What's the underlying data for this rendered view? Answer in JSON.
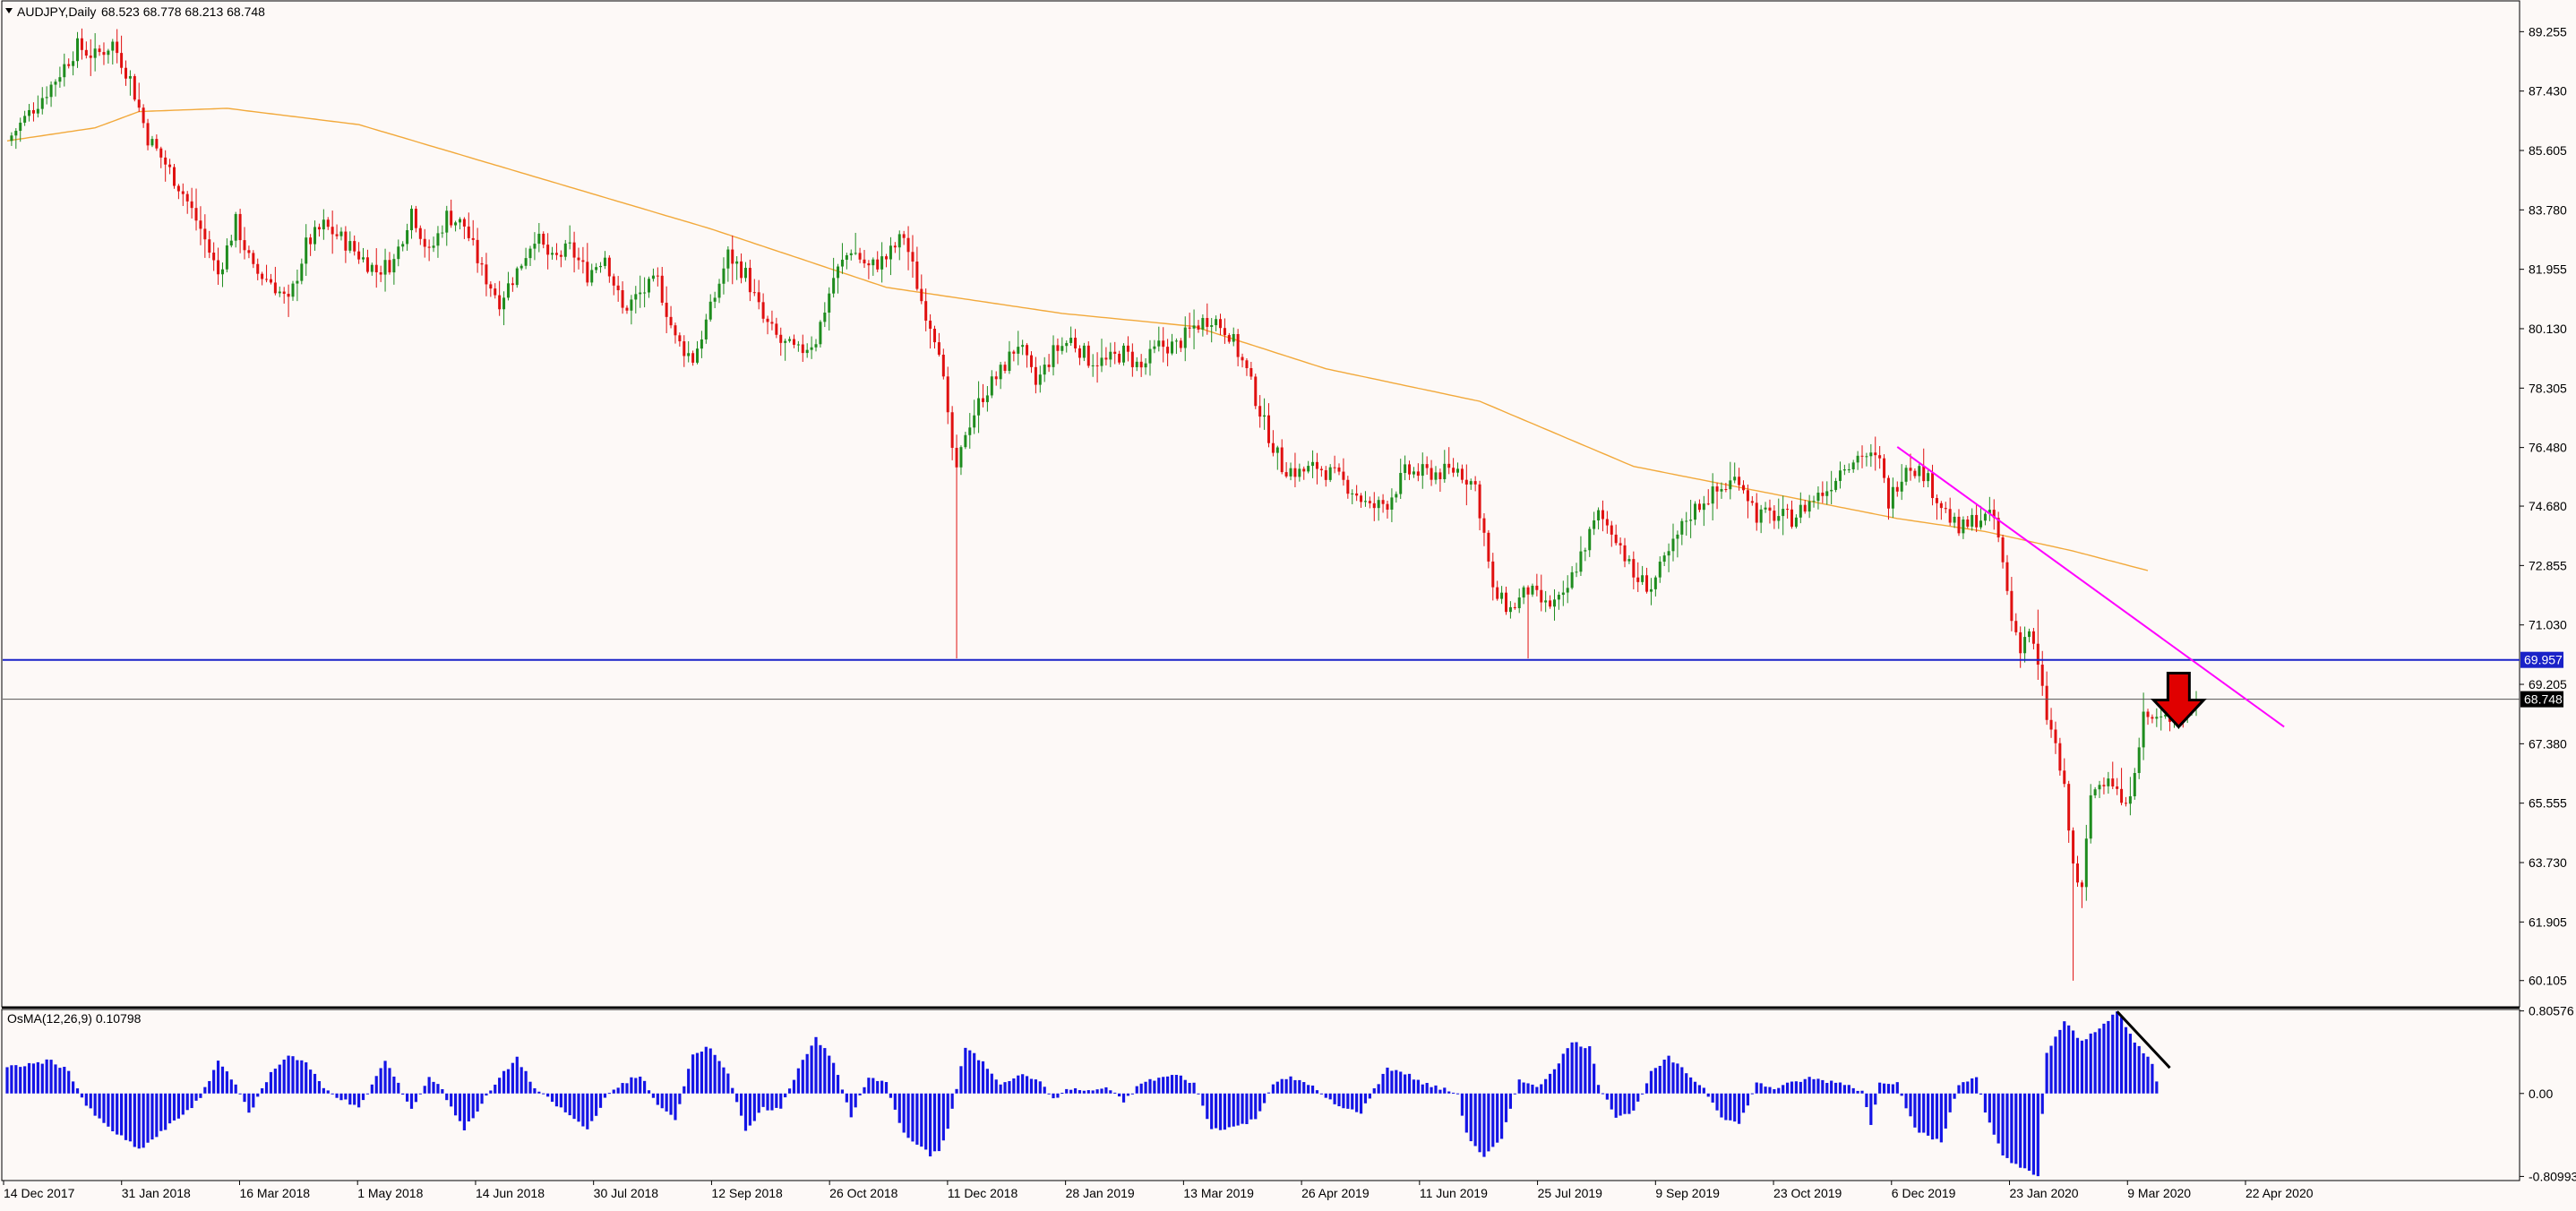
{
  "header": {
    "symbol_label": "AUDJPY,Daily",
    "ohlc_label": "68.523 68.778 68.213 68.748"
  },
  "colors": {
    "background": "#fdf9f7",
    "bull": "#1e8c1e",
    "bear": "#e01010",
    "ma": "#f2a93b",
    "support": "#1a22c8",
    "trendline": "#ff00ff",
    "osma": "#1414e6",
    "price_line": "#000000",
    "arrow": "#e00000"
  },
  "chart_data": [
    {
      "type": "candlestick",
      "title": "AUDJPY,Daily",
      "y_ticks": [
        "89.255",
        "87.430",
        "85.605",
        "83.780",
        "81.955",
        "80.130",
        "78.305",
        "76.480",
        "74.680",
        "72.855",
        "71.030",
        "69.205",
        "67.380",
        "65.555",
        "63.730",
        "61.905",
        "60.105"
      ],
      "ylim": [
        59.3,
        90.2
      ],
      "x_ticks": [
        "14 Dec 2017",
        "31 Jan 2018",
        "16 Mar 2018",
        "1 May 2018",
        "14 Jun 2018",
        "30 Jul 2018",
        "12 Sep 2018",
        "26 Oct 2018",
        "11 Dec 2018",
        "28 Jan 2019",
        "13 Mar 2019",
        "26 Apr 2019",
        "11 Jun 2019",
        "25 Jul 2019",
        "9 Sep 2019",
        "23 Oct 2019",
        "6 Dec 2019",
        "23 Jan 2020",
        "9 Mar 2020",
        "22 Apr 2020"
      ],
      "price_path": [
        [
          0,
          85.9
        ],
        [
          10,
          87.6
        ],
        [
          16,
          88.8
        ],
        [
          20,
          88.5
        ],
        [
          24,
          88.9
        ],
        [
          28,
          87.8
        ],
        [
          32,
          86.0
        ],
        [
          36,
          85.2
        ],
        [
          40,
          84.3
        ],
        [
          44,
          83.2
        ],
        [
          48,
          81.8
        ],
        [
          52,
          83.4
        ],
        [
          56,
          81.9
        ],
        [
          60,
          81.6
        ],
        [
          64,
          80.9
        ],
        [
          68,
          82.7
        ],
        [
          72,
          83.3
        ],
        [
          76,
          82.9
        ],
        [
          80,
          82.4
        ],
        [
          84,
          81.9
        ],
        [
          88,
          82.2
        ],
        [
          92,
          83.8
        ],
        [
          96,
          82.4
        ],
        [
          100,
          83.6
        ],
        [
          104,
          83.3
        ],
        [
          108,
          81.9
        ],
        [
          112,
          81.0
        ],
        [
          116,
          81.9
        ],
        [
          120,
          83.0
        ],
        [
          124,
          82.2
        ],
        [
          128,
          82.6
        ],
        [
          132,
          81.8
        ],
        [
          136,
          82.4
        ],
        [
          140,
          80.7
        ],
        [
          144,
          81.2
        ],
        [
          148,
          81.6
        ],
        [
          152,
          79.8
        ],
        [
          156,
          79.2
        ],
        [
          160,
          80.7
        ],
        [
          164,
          82.4
        ],
        [
          168,
          81.8
        ],
        [
          172,
          80.4
        ],
        [
          176,
          79.7
        ],
        [
          180,
          79.4
        ],
        [
          184,
          79.8
        ],
        [
          188,
          81.7
        ],
        [
          192,
          82.6
        ],
        [
          196,
          82.0
        ],
        [
          200,
          82.3
        ],
        [
          204,
          83.0
        ],
        [
          208,
          81.0
        ],
        [
          212,
          79.6
        ],
        [
          214,
          77.3
        ],
        [
          216,
          75.6
        ],
        [
          218,
          77.0
        ],
        [
          222,
          78.1
        ],
        [
          226,
          78.8
        ],
        [
          230,
          79.7
        ],
        [
          234,
          78.4
        ],
        [
          238,
          79.4
        ],
        [
          242,
          79.8
        ],
        [
          246,
          79.2
        ],
        [
          250,
          79.1
        ],
        [
          254,
          79.4
        ],
        [
          258,
          78.9
        ],
        [
          262,
          79.6
        ],
        [
          266,
          79.6
        ],
        [
          270,
          80.2
        ],
        [
          274,
          80.5
        ],
        [
          278,
          80.0
        ],
        [
          282,
          78.8
        ],
        [
          286,
          77.2
        ],
        [
          290,
          75.9
        ],
        [
          294,
          75.7
        ],
        [
          298,
          75.9
        ],
        [
          302,
          75.6
        ],
        [
          306,
          75.2
        ],
        [
          310,
          74.6
        ],
        [
          314,
          74.8
        ],
        [
          318,
          75.7
        ],
        [
          322,
          75.7
        ],
        [
          326,
          75.7
        ],
        [
          330,
          75.8
        ],
        [
          334,
          75.3
        ],
        [
          336,
          73.8
        ],
        [
          338,
          72.0
        ],
        [
          342,
          71.5
        ],
        [
          346,
          72.1
        ],
        [
          350,
          71.6
        ],
        [
          354,
          71.8
        ],
        [
          358,
          73.2
        ],
        [
          362,
          74.4
        ],
        [
          366,
          73.8
        ],
        [
          370,
          72.5
        ],
        [
          374,
          72.2
        ],
        [
          378,
          73.2
        ],
        [
          382,
          74.3
        ],
        [
          386,
          74.9
        ],
        [
          390,
          75.2
        ],
        [
          394,
          75.6
        ],
        [
          398,
          74.4
        ],
        [
          402,
          74.4
        ],
        [
          406,
          74.3
        ],
        [
          410,
          74.8
        ],
        [
          414,
          75.2
        ],
        [
          418,
          76.0
        ],
        [
          422,
          76.3
        ],
        [
          426,
          76.0
        ],
        [
          428,
          74.8
        ],
        [
          432,
          76.0
        ],
        [
          436,
          75.7
        ],
        [
          440,
          74.7
        ],
        [
          444,
          73.9
        ],
        [
          448,
          74.3
        ],
        [
          452,
          74.3
        ],
        [
          454,
          72.9
        ],
        [
          456,
          71.2
        ],
        [
          458,
          70.4
        ],
        [
          460,
          70.9
        ],
        [
          462,
          69.7
        ],
        [
          464,
          68.2
        ],
        [
          466,
          67.3
        ],
        [
          468,
          65.9
        ],
        [
          470,
          63.6
        ],
        [
          472,
          62.8
        ],
        [
          474,
          65.8
        ],
        [
          478,
          66.5
        ],
        [
          482,
          65.3
        ],
        [
          486,
          68.2
        ],
        [
          490,
          68.1
        ],
        [
          494,
          68.3
        ],
        [
          498,
          68.748
        ]
      ],
      "ma_path": [
        [
          0,
          85.9
        ],
        [
          20,
          86.3
        ],
        [
          30,
          86.8
        ],
        [
          50,
          86.9
        ],
        [
          80,
          86.4
        ],
        [
          120,
          84.8
        ],
        [
          160,
          83.2
        ],
        [
          200,
          81.4
        ],
        [
          240,
          80.6
        ],
        [
          270,
          80.2
        ],
        [
          300,
          78.9
        ],
        [
          335,
          77.9
        ],
        [
          370,
          75.9
        ],
        [
          400,
          75.1
        ],
        [
          430,
          74.3
        ],
        [
          450,
          73.9
        ],
        [
          470,
          73.3
        ],
        [
          487,
          72.7
        ]
      ],
      "support_level": 69.957,
      "support_label": "69.957",
      "last_price": 68.748,
      "last_price_label": "68.748",
      "trendline": [
        [
          430,
          76.5
        ],
        [
          518,
          67.9
        ]
      ],
      "annotation_arrow": {
        "x": 494,
        "y": 67.9,
        "direction": "down"
      }
    },
    {
      "type": "bar",
      "title": "OsMA(12,26,9) 0.10798",
      "y_ticks": [
        "0.80576",
        "0.00",
        "-0.80993"
      ],
      "ylim": [
        -0.85,
        0.82
      ],
      "zero": 0.0,
      "osma_path": [
        [
          0,
          0.25
        ],
        [
          10,
          0.32
        ],
        [
          14,
          0.22
        ],
        [
          18,
          -0.12
        ],
        [
          22,
          -0.3
        ],
        [
          30,
          -0.55
        ],
        [
          34,
          -0.42
        ],
        [
          40,
          -0.2
        ],
        [
          44,
          -0.05
        ],
        [
          48,
          0.32
        ],
        [
          52,
          0.1
        ],
        [
          55,
          -0.2
        ],
        [
          60,
          0.2
        ],
        [
          64,
          0.38
        ],
        [
          68,
          0.3
        ],
        [
          72,
          0.05
        ],
        [
          80,
          -0.15
        ],
        [
          86,
          0.32
        ],
        [
          92,
          -0.15
        ],
        [
          96,
          0.15
        ],
        [
          98,
          0.1
        ],
        [
          104,
          -0.35
        ],
        [
          108,
          -0.1
        ],
        [
          112,
          0.15
        ],
        [
          116,
          0.35
        ],
        [
          120,
          0.05
        ],
        [
          126,
          -0.15
        ],
        [
          132,
          -0.35
        ],
        [
          136,
          -0.05
        ],
        [
          140,
          0.1
        ],
        [
          144,
          0.18
        ],
        [
          148,
          -0.12
        ],
        [
          152,
          -0.25
        ],
        [
          156,
          0.4
        ],
        [
          160,
          0.45
        ],
        [
          164,
          0.2
        ],
        [
          168,
          -0.38
        ],
        [
          172,
          -0.15
        ],
        [
          176,
          -0.15
        ],
        [
          180,
          0.25
        ],
        [
          184,
          0.55
        ],
        [
          188,
          0.3
        ],
        [
          192,
          -0.22
        ],
        [
          196,
          0.15
        ],
        [
          200,
          0.1
        ],
        [
          204,
          -0.4
        ],
        [
          210,
          -0.6
        ],
        [
          212,
          -0.55
        ],
        [
          214,
          -0.35
        ],
        [
          218,
          0.45
        ],
        [
          222,
          0.3
        ],
        [
          226,
          0.1
        ],
        [
          230,
          0.18
        ],
        [
          234,
          0.15
        ],
        [
          238,
          -0.05
        ],
        [
          242,
          0.05
        ],
        [
          246,
          0.02
        ],
        [
          250,
          0.06
        ],
        [
          254,
          -0.08
        ],
        [
          258,
          0.1
        ],
        [
          262,
          0.15
        ],
        [
          266,
          0.18
        ],
        [
          270,
          0.1
        ],
        [
          274,
          -0.35
        ],
        [
          280,
          -0.32
        ],
        [
          284,
          -0.25
        ],
        [
          288,
          0.1
        ],
        [
          292,
          0.15
        ],
        [
          296,
          0.1
        ],
        [
          300,
          -0.05
        ],
        [
          304,
          -0.15
        ],
        [
          308,
          -0.18
        ],
        [
          314,
          0.25
        ],
        [
          318,
          0.2
        ],
        [
          322,
          0.1
        ],
        [
          330,
          0.0
        ],
        [
          332,
          -0.4
        ],
        [
          336,
          -0.62
        ],
        [
          340,
          -0.45
        ],
        [
          344,
          0.15
        ],
        [
          348,
          0.05
        ],
        [
          352,
          0.25
        ],
        [
          356,
          0.5
        ],
        [
          360,
          0.45
        ],
        [
          362,
          0.1
        ],
        [
          366,
          -0.22
        ],
        [
          370,
          -0.18
        ],
        [
          374,
          0.2
        ],
        [
          378,
          0.35
        ],
        [
          382,
          0.2
        ],
        [
          386,
          0.05
        ],
        [
          390,
          -0.22
        ],
        [
          394,
          -0.3
        ],
        [
          398,
          0.1
        ],
        [
          402,
          0.05
        ],
        [
          406,
          0.1
        ],
        [
          410,
          0.15
        ],
        [
          414,
          0.12
        ],
        [
          418,
          0.1
        ],
        [
          422,
          0.02
        ],
        [
          424,
          -0.3
        ],
        [
          426,
          0.12
        ],
        [
          430,
          0.1
        ],
        [
          434,
          -0.35
        ],
        [
          440,
          -0.48
        ],
        [
          444,
          0.1
        ],
        [
          448,
          0.15
        ],
        [
          450,
          -0.2
        ],
        [
          454,
          -0.6
        ],
        [
          458,
          -0.72
        ],
        [
          462,
          -0.82
        ],
        [
          464,
          0.4
        ],
        [
          468,
          0.7
        ],
        [
          472,
          0.5
        ],
        [
          476,
          0.65
        ],
        [
          480,
          0.8
        ],
        [
          484,
          0.5
        ],
        [
          488,
          0.3
        ],
        [
          489,
          0.108
        ]
      ],
      "annotation_segment": [
        [
          480,
          0.8
        ],
        [
          492,
          0.25
        ]
      ]
    }
  ]
}
